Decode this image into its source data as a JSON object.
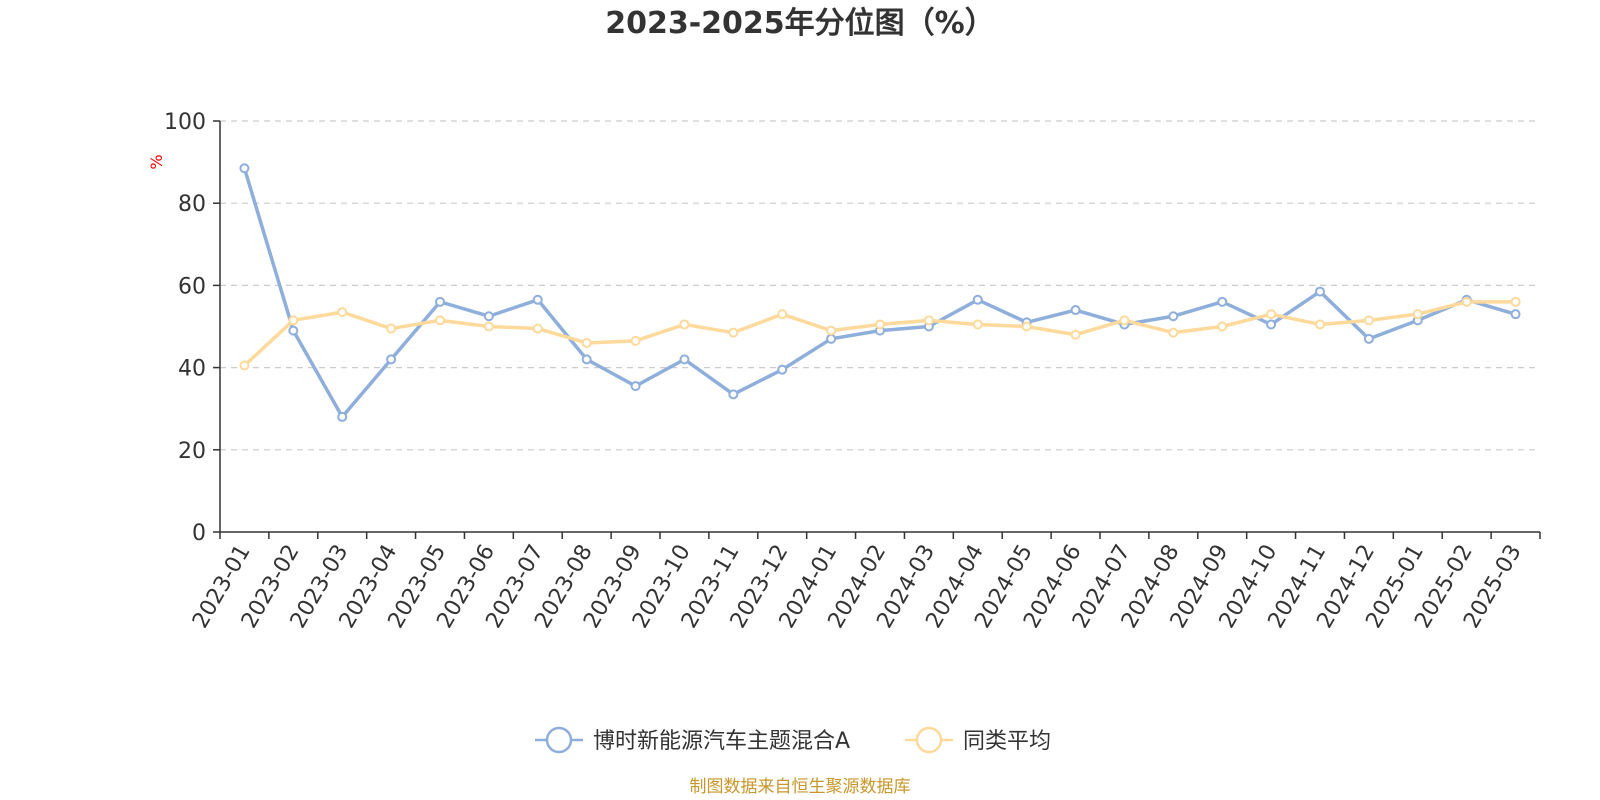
{
  "chart_data": {
    "type": "line",
    "title": "2023-2025年分位图（%）",
    "ylabel": "%",
    "ylim": [
      0,
      100
    ],
    "yticks": [
      0,
      20,
      40,
      60,
      80,
      100
    ],
    "grid": "horizontal-dashed",
    "legend_position": "bottom-center",
    "categories": [
      "2023-01",
      "2023-02",
      "2023-03",
      "2023-04",
      "2023-05",
      "2023-06",
      "2023-07",
      "2023-08",
      "2023-09",
      "2023-10",
      "2023-11",
      "2023-12",
      "2024-01",
      "2024-02",
      "2024-03",
      "2024-04",
      "2024-05",
      "2024-06",
      "2024-07",
      "2024-08",
      "2024-09",
      "2024-10",
      "2024-11",
      "2024-12",
      "2025-01",
      "2025-02",
      "2025-03"
    ],
    "series": [
      {
        "name": "博时新能源汽车主题混合A",
        "color": "#8eaedb",
        "values": [
          88.5,
          49,
          28,
          42,
          56,
          52.5,
          56.5,
          42,
          35.5,
          42,
          33.5,
          39.5,
          47,
          49,
          50,
          56.5,
          51,
          54,
          50.5,
          52.5,
          56,
          50.5,
          58.5,
          47,
          51.5,
          56.5,
          53
        ]
      },
      {
        "name": "同类平均",
        "color": "#fdd99b",
        "values": [
          40.5,
          51.5,
          53.5,
          49.5,
          51.5,
          50,
          49.5,
          46,
          46.5,
          50.5,
          48.5,
          53,
          49,
          50.5,
          51.5,
          50.5,
          50,
          48,
          51.5,
          48.5,
          50,
          53,
          50.5,
          51.5,
          53,
          56,
          56
        ]
      }
    ],
    "source": "制图数据来自恒生聚源数据库",
    "colors": {
      "axis": "#333333",
      "grid": "#cccccc",
      "unit": "#ff0000",
      "source": "#c8962a"
    }
  }
}
